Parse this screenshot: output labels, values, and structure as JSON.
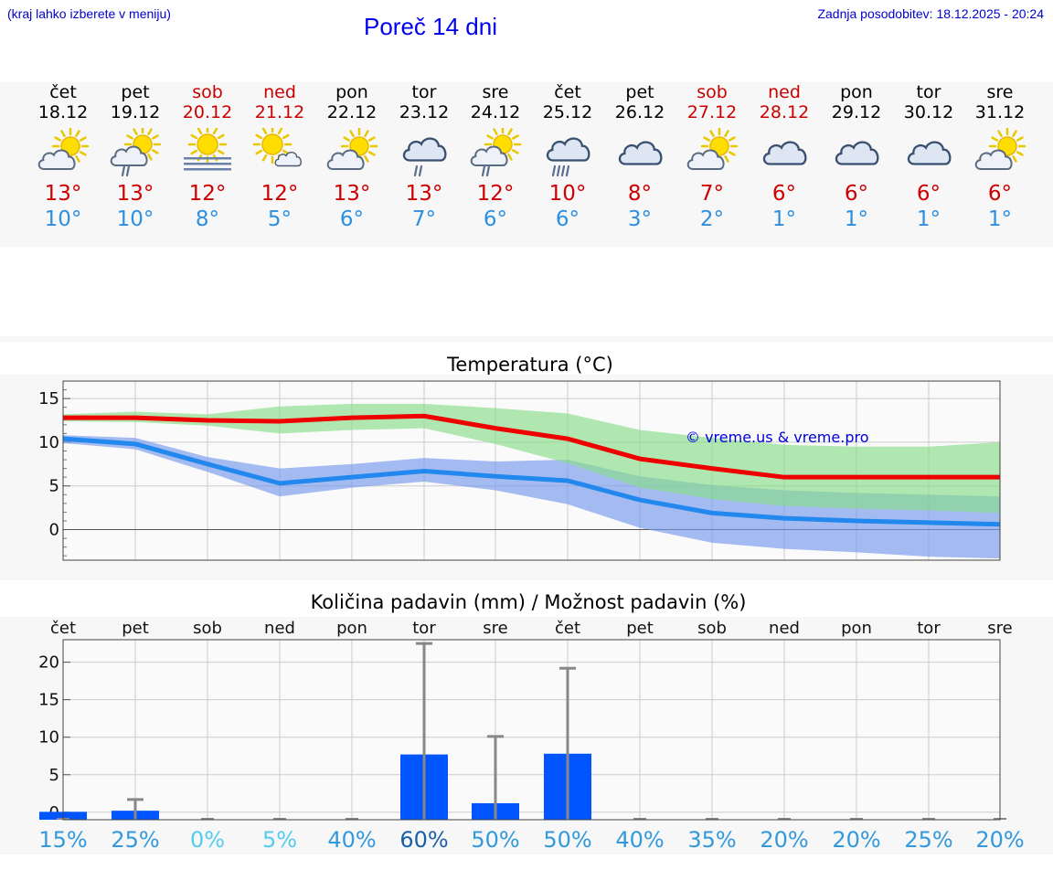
{
  "header": {
    "hint": "(kraj lahko izberete v meniju)",
    "title": "Poreč 14 dni",
    "updated": "Zadnja posodobitev: 18.12.2025 - 20:24"
  },
  "days": [
    {
      "name": "čet",
      "date": "18.12",
      "weekend": false,
      "icon": "sun-cloud-icon",
      "max": "13°",
      "min": "10°",
      "max_v": 12.8,
      "min_v": 10.4,
      "max_hi": 13.2,
      "max_lo": 12.4,
      "min_hi": 10.8,
      "min_lo": 9.9,
      "pct": "15%",
      "pct_color": "#3399dd",
      "rain": 0.05,
      "rain_hi": 0
    },
    {
      "name": "pet",
      "date": "19.12",
      "weekend": false,
      "icon": "sun-cloud-rain-icon",
      "max": "13°",
      "min": "10°",
      "max_v": 12.8,
      "min_v": 9.8,
      "max_hi": 13.5,
      "max_lo": 12.3,
      "min_hi": 10.5,
      "min_lo": 9.2,
      "pct": "25%",
      "pct_color": "#3399dd",
      "rain": 0.2,
      "rain_hi": 1.7
    },
    {
      "name": "sob",
      "date": "20.12",
      "weekend": true,
      "icon": "sun-fog-icon",
      "max": "12°",
      "min": "8°",
      "max_v": 12.5,
      "min_v": 7.5,
      "max_hi": 13.2,
      "max_lo": 11.9,
      "min_hi": 8.3,
      "min_lo": 6.6,
      "pct": "0%",
      "pct_color": "#55ccee",
      "rain": 0,
      "rain_hi": 0
    },
    {
      "name": "ned",
      "date": "21.12",
      "weekend": true,
      "icon": "sun-small-cloud-icon",
      "max": "12°",
      "min": "5°",
      "max_v": 12.4,
      "min_v": 5.3,
      "max_hi": 14.1,
      "max_lo": 11.0,
      "min_hi": 7.0,
      "min_lo": 3.8,
      "pct": "5%",
      "pct_color": "#55ccee",
      "rain": 0,
      "rain_hi": 0
    },
    {
      "name": "pon",
      "date": "22.12",
      "weekend": false,
      "icon": "sun-cloud-icon",
      "max": "13°",
      "min": "6°",
      "max_v": 12.8,
      "min_v": 6.0,
      "max_hi": 14.4,
      "max_lo": 11.4,
      "min_hi": 7.5,
      "min_lo": 4.8,
      "pct": "40%",
      "pct_color": "#3399dd",
      "rain": 0,
      "rain_hi": 0
    },
    {
      "name": "tor",
      "date": "23.12",
      "weekend": false,
      "icon": "cloud-rain-icon",
      "max": "13°",
      "min": "7°",
      "max_v": 13.0,
      "min_v": 6.7,
      "max_hi": 14.4,
      "max_lo": 11.6,
      "min_hi": 8.2,
      "min_lo": 5.5,
      "pct": "60%",
      "pct_color": "#1a5fa8",
      "rain": 7.7,
      "rain_hi": 22.5
    },
    {
      "name": "sre",
      "date": "24.12",
      "weekend": false,
      "icon": "sun-cloud-rain-icon",
      "max": "12°",
      "min": "6°",
      "max_v": 11.6,
      "min_v": 6.1,
      "max_hi": 13.9,
      "max_lo": 9.8,
      "min_hi": 7.8,
      "min_lo": 4.5,
      "pct": "50%",
      "pct_color": "#3399dd",
      "rain": 1.2,
      "rain_hi": 10.1
    },
    {
      "name": "čet",
      "date": "25.12",
      "weekend": false,
      "icon": "cloud-heavy-rain-icon",
      "max": "10°",
      "min": "6°",
      "max_v": 10.4,
      "min_v": 5.6,
      "max_hi": 13.3,
      "max_lo": 7.6,
      "min_hi": 8.0,
      "min_lo": 2.9,
      "pct": "50%",
      "pct_color": "#3399dd",
      "rain": 7.8,
      "rain_hi": 19.2
    },
    {
      "name": "pet",
      "date": "26.12",
      "weekend": false,
      "icon": "cloud-icon",
      "max": "8°",
      "min": "3°",
      "max_v": 8.1,
      "min_v": 3.4,
      "max_hi": 11.4,
      "max_lo": 4.8,
      "min_hi": 6.1,
      "min_lo": 0.2,
      "pct": "40%",
      "pct_color": "#3399dd",
      "rain": 0,
      "rain_hi": 0
    },
    {
      "name": "sob",
      "date": "27.12",
      "weekend": true,
      "icon": "sun-cloud-icon",
      "max": "7°",
      "min": "2°",
      "max_v": 7.0,
      "min_v": 1.9,
      "max_hi": 10.5,
      "max_lo": 3.5,
      "min_hi": 5.1,
      "min_lo": -1.5,
      "pct": "35%",
      "pct_color": "#3399dd",
      "rain": 0,
      "rain_hi": 0
    },
    {
      "name": "ned",
      "date": "28.12",
      "weekend": true,
      "icon": "cloud-icon",
      "max": "6°",
      "min": "1°",
      "max_v": 6.0,
      "min_v": 1.3,
      "max_hi": 9.7,
      "max_lo": 2.7,
      "min_hi": 4.5,
      "min_lo": -2.2,
      "pct": "20%",
      "pct_color": "#3399dd",
      "rain": 0,
      "rain_hi": 0
    },
    {
      "name": "pon",
      "date": "29.12",
      "weekend": false,
      "icon": "cloud-icon",
      "max": "6°",
      "min": "1°",
      "max_v": 6.0,
      "min_v": 1.0,
      "max_hi": 9.5,
      "max_lo": 2.4,
      "min_hi": 4.2,
      "min_lo": -2.6,
      "pct": "20%",
      "pct_color": "#3399dd",
      "rain": 0,
      "rain_hi": 0
    },
    {
      "name": "tor",
      "date": "30.12",
      "weekend": false,
      "icon": "cloud-icon",
      "max": "6°",
      "min": "1°",
      "max_v": 6.0,
      "min_v": 0.8,
      "max_hi": 9.5,
      "max_lo": 2.2,
      "min_hi": 4.0,
      "min_lo": -3.1,
      "pct": "25%",
      "pct_color": "#3399dd",
      "rain": 0,
      "rain_hi": 0
    },
    {
      "name": "sre",
      "date": "31.12",
      "weekend": false,
      "icon": "sun-cloud-icon",
      "max": "6°",
      "min": "1°",
      "max_v": 6.0,
      "min_v": 0.6,
      "max_hi": 10.0,
      "max_lo": 1.9,
      "min_hi": 3.8,
      "min_lo": -3.3,
      "pct": "20%",
      "pct_color": "#3399dd",
      "rain": 0,
      "rain_hi": 0
    }
  ],
  "chart_data": [
    {
      "type": "line",
      "title": "Temperatura (°C)",
      "watermark": "© vreme.us & vreme.pro",
      "ylim": [
        -3.5,
        17
      ],
      "yticks": [
        0,
        5,
        10,
        15
      ],
      "ytick_labels": [
        "0",
        "5",
        "10",
        "15"
      ],
      "categories": [
        "18.12",
        "19.12",
        "20.12",
        "21.12",
        "22.12",
        "23.12",
        "24.12",
        "25.12",
        "26.12",
        "27.12",
        "28.12",
        "29.12",
        "30.12",
        "31.12"
      ],
      "series": [
        {
          "name": "max",
          "color": "#ee0000",
          "band_color": "#88dd88",
          "values": [
            12.8,
            12.8,
            12.5,
            12.4,
            12.8,
            13.0,
            11.6,
            10.4,
            8.1,
            7.0,
            6.0,
            6.0,
            6.0,
            6.0
          ]
        },
        {
          "name": "min",
          "color": "#2288ee",
          "band_color": "#7799ee",
          "values": [
            10.4,
            9.8,
            7.5,
            5.3,
            6.0,
            6.7,
            6.1,
            5.6,
            3.4,
            1.9,
            1.3,
            1.0,
            0.8,
            0.6
          ]
        }
      ]
    },
    {
      "type": "bar",
      "title": "Količina padavin (mm) / Možnost padavin (%)",
      "ylim": [
        -1,
        23
      ],
      "yticks": [
        0,
        5,
        10,
        15,
        20
      ],
      "ytick_labels": [
        "0",
        "5",
        "10",
        "15",
        "20"
      ],
      "categories": [
        "čet",
        "pet",
        "sob",
        "ned",
        "pon",
        "tor",
        "sre",
        "čet",
        "pet",
        "sob",
        "ned",
        "pon",
        "tor",
        "sre"
      ],
      "values": [
        0.05,
        0.2,
        0,
        0,
        0,
        7.7,
        1.2,
        7.8,
        0,
        0,
        0,
        0,
        0,
        0
      ],
      "error_max": [
        0,
        1.7,
        0,
        0,
        0,
        22.5,
        10.1,
        19.2,
        0,
        0,
        0,
        0,
        0,
        0
      ],
      "probability": [
        "15%",
        "25%",
        "0%",
        "5%",
        "40%",
        "60%",
        "50%",
        "50%",
        "40%",
        "35%",
        "20%",
        "20%",
        "25%",
        "20%"
      ],
      "bar_color": "#0055ff"
    }
  ]
}
